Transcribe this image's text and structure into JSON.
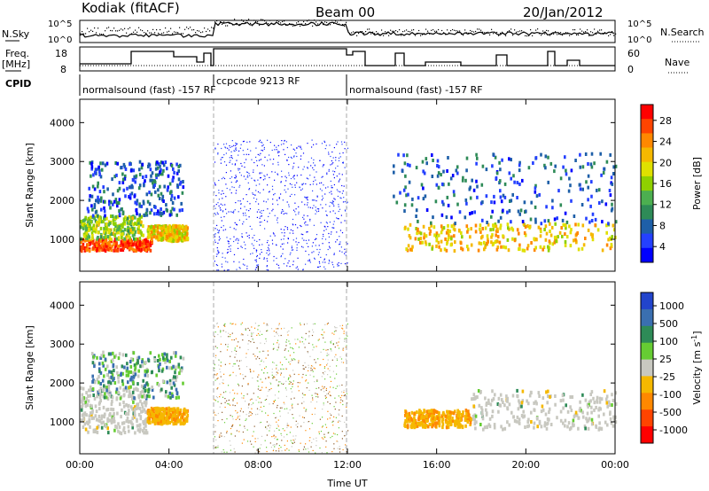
{
  "header": {
    "station": "Kodiak (fitACF)",
    "beam": "Beam 00",
    "date": "20/Jan/2012"
  },
  "strips": {
    "nsky_label": "N.Sky",
    "nsearch_label": "N.Search",
    "nsky_ticks": [
      "10^5",
      "10^0"
    ],
    "nsearch_ticks": [
      "10^5",
      "10^0"
    ],
    "freq_label_line1": "Freq.",
    "freq_label_line2": "[MHz]",
    "freq_ticks": [
      "18",
      "8"
    ],
    "nave_label": "Nave",
    "nave_ticks": [
      "60",
      "0"
    ],
    "cpid_label": "CPID",
    "cpid_segments": [
      {
        "text": "normalsound (fast) -157 RF",
        "start_hour": 0
      },
      {
        "text": "ccpcode 9213 RF",
        "start_hour": 6
      },
      {
        "text": "normalsound (fast) -157 RF",
        "start_hour": 12
      }
    ]
  },
  "chart_data": [
    {
      "type": "heatmap",
      "panel": "power",
      "ylabel": "Slant Range [km]",
      "xlabel": "Time UT",
      "x_ticks": [
        "00:00",
        "04:00",
        "08:00",
        "12:00",
        "16:00",
        "20:00",
        "00:00"
      ],
      "xlim_hours": [
        0,
        24
      ],
      "y_ticks": [
        1000,
        2000,
        3000,
        4000
      ],
      "ylim": [
        180,
        4600
      ],
      "colorbar": {
        "label": "Power [dB]",
        "ticks": [
          "28",
          "24",
          "20",
          "16",
          "12",
          "8",
          "4"
        ],
        "colors": [
          "#ff0000",
          "#ff4400",
          "#ff8800",
          "#f5b800",
          "#dfe000",
          "#8fd000",
          "#4caf50",
          "#2e8b57",
          "#1e5fa8",
          "#2440ff",
          "#0000ff"
        ]
      },
      "regions": [
        {
          "name": "early-strong-echo",
          "t0": 0.0,
          "t1": 3.2,
          "r0": 700,
          "r1": 1000,
          "level": 26
        },
        {
          "name": "early-mid-echo",
          "t0": 0.0,
          "t1": 2.8,
          "r0": 1000,
          "r1": 1600,
          "level": 16
        },
        {
          "name": "early-weak-echo",
          "t0": 0.3,
          "t1": 4.6,
          "r0": 1600,
          "r1": 3000,
          "level": 8
        },
        {
          "name": "morning-echo",
          "t0": 3.0,
          "t1": 4.8,
          "r0": 950,
          "r1": 1350,
          "level": 20
        },
        {
          "name": "noise-block",
          "t0": 6.0,
          "t1": 12.0,
          "r0": 200,
          "r1": 3550,
          "level": 6
        },
        {
          "name": "late-echo",
          "t0": 14.5,
          "t1": 24.0,
          "r0": 700,
          "r1": 1400,
          "level": 20
        },
        {
          "name": "late-weak-echo",
          "t0": 14.0,
          "t1": 24.0,
          "r0": 1400,
          "r1": 3200,
          "level": 8
        }
      ]
    },
    {
      "type": "heatmap",
      "panel": "velocity",
      "ylabel": "Slant Range [km]",
      "xlabel": "Time UT",
      "x_ticks": [
        "00:00",
        "04:00",
        "08:00",
        "12:00",
        "16:00",
        "20:00",
        "00:00"
      ],
      "xlim_hours": [
        0,
        24
      ],
      "y_ticks": [
        1000,
        2000,
        3000,
        4000
      ],
      "ylim": [
        180,
        4600
      ],
      "colorbar": {
        "label": "Velocity [m s^-1]",
        "ticks": [
          "1000",
          "500",
          "100",
          "25",
          "-25",
          "-100",
          "-500",
          "-1000"
        ],
        "colors": [
          "#2244cc",
          "#3a6fb0",
          "#2e8b57",
          "#66cc33",
          "#c8c8c0",
          "#f5b800",
          "#ff8800",
          "#ff4400",
          "#ff0000"
        ]
      },
      "regions": [
        {
          "name": "early-ground-scatter",
          "t0": 0.0,
          "t1": 3.0,
          "r0": 700,
          "r1": 1900,
          "level": 0
        },
        {
          "name": "early-scatter-upper",
          "t0": 0.5,
          "t1": 4.6,
          "r0": 1600,
          "r1": 2800,
          "level": 50
        },
        {
          "name": "morning-negative",
          "t0": 3.0,
          "t1": 4.8,
          "r0": 950,
          "r1": 1350,
          "level": -200
        },
        {
          "name": "noise-block",
          "t0": 6.0,
          "t1": 12.0,
          "r0": 200,
          "r1": 3550,
          "level": 0
        },
        {
          "name": "late-ground-scatter",
          "t0": 17.5,
          "t1": 24.0,
          "r0": 800,
          "r1": 1800,
          "level": 0
        },
        {
          "name": "late-negative",
          "t0": 14.5,
          "t1": 17.5,
          "r0": 850,
          "r1": 1300,
          "level": -80
        }
      ]
    }
  ],
  "colorbar_power": {
    "label": "Power [dB]",
    "ticks": [
      "28",
      "24",
      "20",
      "16",
      "12",
      "8",
      "4"
    ]
  },
  "colorbar_velocity": {
    "label": "Velocity [m s",
    "label_sup": "-1",
    "label_tail": "]",
    "ticks": [
      "1000",
      "500",
      "100",
      "25",
      "-25",
      "-100",
      "-500",
      "-1000"
    ]
  }
}
